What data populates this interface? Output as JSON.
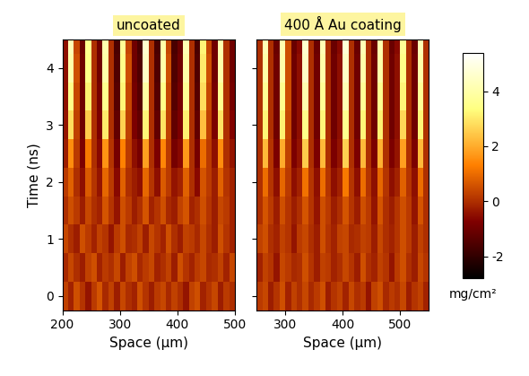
{
  "chart_data": [
    {
      "type": "heatmap",
      "title": "uncoated",
      "xlabel": "Space (µm)",
      "ylabel": "Time (ns)",
      "xlim": [
        200,
        500
      ],
      "xticks": [
        200,
        300,
        400,
        500
      ],
      "ylim": [
        -0.25,
        4.5
      ],
      "yticks": [
        0,
        1,
        2,
        3,
        4
      ],
      "x": [
        205,
        215,
        225,
        235,
        245,
        255,
        265,
        275,
        285,
        295,
        305,
        315,
        325,
        335,
        345,
        355,
        365,
        375,
        385,
        395,
        405,
        415,
        425,
        435,
        445,
        455,
        465,
        475,
        485,
        495
      ],
      "y": [
        0,
        0.5,
        1,
        1.5,
        2,
        2.5,
        3,
        3.5,
        4,
        4.5
      ],
      "z": [
        [
          0.3,
          -0.2,
          0.5,
          0.1,
          -0.4,
          0.2,
          0.6,
          -0.1,
          0.3,
          -0.3,
          0.4,
          0.0,
          -0.2,
          0.5,
          0.1,
          -0.3,
          0.2,
          0.4,
          -0.1,
          0.3,
          0.0,
          -0.4,
          0.3,
          0.5,
          -0.2,
          0.1,
          0.4,
          -0.3,
          0.2,
          0.0
        ],
        [
          -0.1,
          0.4,
          0.0,
          -0.3,
          0.3,
          0.5,
          -0.2,
          0.2,
          0.0,
          0.4,
          -0.3,
          0.3,
          0.5,
          -0.1,
          0.2,
          0.4,
          -0.2,
          0.0,
          0.3,
          -0.3,
          0.5,
          0.1,
          -0.2,
          0.2,
          0.4,
          -0.1,
          0.0,
          0.3,
          -0.2,
          0.4
        ],
        [
          0.4,
          0.0,
          -0.3,
          0.5,
          0.2,
          -0.2,
          0.3,
          0.1,
          -0.4,
          0.2,
          0.5,
          -0.1,
          0.0,
          0.3,
          -0.3,
          0.4,
          0.1,
          -0.2,
          0.5,
          0.0,
          -0.3,
          0.3,
          0.2,
          -0.1,
          0.4,
          0.0,
          -0.3,
          0.5,
          0.1,
          -0.2
        ],
        [
          0.0,
          0.5,
          0.2,
          -0.3,
          0.4,
          0.0,
          -0.2,
          0.6,
          0.1,
          -0.4,
          0.5,
          0.2,
          -0.3,
          0.0,
          0.6,
          -0.2,
          0.1,
          0.5,
          -0.1,
          -0.3,
          0.3,
          0.6,
          -0.2,
          0.0,
          0.5,
          0.1,
          -0.3,
          0.4,
          0.2,
          -0.2
        ],
        [
          0.2,
          0.8,
          0.0,
          -0.5,
          0.7,
          0.1,
          -0.4,
          0.9,
          0.2,
          -0.6,
          0.8,
          0.0,
          -0.3,
          -0.5,
          0.9,
          0.1,
          -0.5,
          0.7,
          0.2,
          -0.4,
          -0.2,
          0.8,
          0.0,
          -0.6,
          0.6,
          0.2,
          -0.3,
          0.8,
          0.1,
          -0.2
        ],
        [
          -0.3,
          1.5,
          0.2,
          -0.8,
          1.2,
          0.0,
          -0.6,
          1.6,
          0.1,
          -0.9,
          1.3,
          0.2,
          -0.5,
          -0.9,
          1.8,
          0.0,
          -0.8,
          1.4,
          0.2,
          -0.9,
          -0.6,
          1.7,
          0.0,
          -0.9,
          1.0,
          0.2,
          -0.5,
          1.5,
          0.0,
          -0.4
        ],
        [
          -0.4,
          2.8,
          0.3,
          -1.0,
          2.5,
          0.0,
          -0.8,
          3.0,
          0.0,
          -1.2,
          2.6,
          0.3,
          -0.8,
          -1.2,
          3.2,
          0.0,
          -1.2,
          2.9,
          0.3,
          -1.2,
          -0.8,
          3.1,
          0.0,
          -1.2,
          2.3,
          0.3,
          -0.8,
          2.9,
          0.0,
          -0.7
        ],
        [
          -0.5,
          3.5,
          0.4,
          -1.0,
          3.1,
          0.0,
          -0.9,
          3.6,
          0.0,
          -1.4,
          3.2,
          0.4,
          -0.9,
          -1.4,
          3.9,
          0.0,
          -1.4,
          3.5,
          0.4,
          -1.4,
          -0.9,
          3.7,
          0.0,
          -1.4,
          2.8,
          0.4,
          -0.9,
          3.6,
          0.0,
          -0.9
        ],
        [
          -0.5,
          4.0,
          0.5,
          -1.0,
          3.5,
          0.0,
          -1.0,
          4.0,
          0.0,
          -1.5,
          3.5,
          0.5,
          -1.0,
          -1.5,
          4.5,
          0.0,
          -1.5,
          4.0,
          0.5,
          -1.5,
          -1.0,
          4.0,
          0.0,
          -1.5,
          3.0,
          0.5,
          -1.0,
          4.0,
          0.0,
          -1.0
        ],
        [
          -0.5,
          4.2,
          0.4,
          -1.1,
          3.6,
          0.0,
          -1.0,
          4.1,
          0.0,
          -1.6,
          3.7,
          0.4,
          -1.0,
          -1.6,
          4.6,
          0.0,
          -1.6,
          4.0,
          0.4,
          -1.6,
          -1.1,
          4.2,
          0.0,
          -1.6,
          3.2,
          0.4,
          -1.0,
          4.1,
          0.0,
          -1.0
        ]
      ]
    },
    {
      "type": "heatmap",
      "title": "400 Å Au coating",
      "xlabel": "Space (µm)",
      "xlim": [
        250,
        550
      ],
      "xticks": [
        300,
        400,
        500
      ],
      "ylim": [
        -0.25,
        4.5
      ],
      "yticks": [
        0,
        1,
        2,
        3,
        4
      ],
      "tick_labels": "x",
      "x": [
        255,
        265,
        275,
        285,
        295,
        305,
        315,
        325,
        335,
        345,
        355,
        365,
        375,
        385,
        395,
        405,
        415,
        425,
        435,
        445,
        455,
        465,
        475,
        485,
        495,
        505,
        515,
        525,
        535,
        545
      ],
      "y": [
        0,
        0.5,
        1,
        1.5,
        2,
        2.5,
        3,
        3.5,
        4,
        4.5
      ],
      "z": [
        [
          0.2,
          0.4,
          -0.3,
          0.1,
          0.5,
          -0.2,
          0.3,
          0.0,
          0.4,
          -0.1,
          0.2,
          0.5,
          -0.3,
          0.1,
          0.3,
          -0.2,
          0.4,
          0.0,
          0.2,
          -0.4,
          0.3,
          0.5,
          -0.1,
          0.2,
          0.0,
          0.4,
          -0.3,
          0.1,
          0.3,
          -0.2
        ],
        [
          -0.2,
          0.3,
          0.1,
          -0.4,
          0.4,
          0.2,
          -0.1,
          0.0,
          0.5,
          0.1,
          -0.3,
          0.3,
          0.2,
          -0.2,
          0.0,
          0.4,
          0.1,
          -0.3,
          0.5,
          0.0,
          -0.2,
          0.3,
          0.1,
          -0.4,
          0.2,
          0.5,
          0.0,
          -0.3,
          0.4,
          0.1
        ],
        [
          0.3,
          0.5,
          0.0,
          -0.2,
          0.3,
          0.1,
          -0.4,
          0.2,
          0.4,
          0.0,
          -0.3,
          0.5,
          0.1,
          -0.2,
          0.3,
          0.4,
          -0.1,
          0.0,
          0.3,
          0.2,
          -0.3,
          0.4,
          0.0,
          -0.2,
          0.1,
          0.5,
          0.2,
          -0.3,
          0.3,
          0.0
        ],
        [
          0.0,
          0.6,
          0.2,
          -0.3,
          0.5,
          0.1,
          -0.3,
          0.0,
          0.6,
          0.1,
          -0.4,
          0.5,
          0.2,
          -0.3,
          0.0,
          0.6,
          0.1,
          -0.3,
          0.5,
          0.2,
          -0.4,
          0.6,
          0.0,
          -0.3,
          0.1,
          0.5,
          0.2,
          -0.4,
          0.6,
          0.0
        ],
        [
          0.0,
          1.0,
          0.1,
          -0.5,
          0.9,
          0.2,
          -0.5,
          -0.2,
          1.1,
          0.1,
          -0.5,
          1.0,
          0.1,
          -0.5,
          -0.2,
          1.2,
          0.1,
          -0.5,
          1.0,
          0.1,
          -0.5,
          0.9,
          0.1,
          -0.5,
          -0.2,
          0.8,
          0.1,
          -0.5,
          1.0,
          0.0
        ],
        [
          0.0,
          2.2,
          0.1,
          -0.8,
          2.0,
          0.3,
          -0.8,
          -0.4,
          2.5,
          0.0,
          -0.8,
          2.2,
          0.0,
          -0.8,
          -0.4,
          2.6,
          0.0,
          -0.8,
          2.2,
          0.0,
          -0.8,
          2.1,
          0.0,
          -0.8,
          -0.4,
          1.8,
          0.0,
          -0.8,
          2.2,
          0.0
        ],
        [
          0.0,
          3.2,
          0.0,
          -1.0,
          3.1,
          0.4,
          -1.0,
          -0.5,
          3.5,
          0.0,
          -1.0,
          3.2,
          0.0,
          -1.0,
          -0.5,
          3.6,
          0.0,
          -1.0,
          3.2,
          0.0,
          -1.0,
          3.1,
          0.0,
          -1.0,
          -0.5,
          2.7,
          0.0,
          -1.0,
          3.2,
          0.0
        ],
        [
          0.0,
          3.7,
          0.0,
          -1.0,
          3.6,
          0.5,
          -1.0,
          -0.5,
          4.1,
          0.0,
          -1.0,
          3.7,
          0.0,
          -1.0,
          -0.5,
          4.2,
          0.0,
          -1.0,
          3.7,
          0.0,
          -1.0,
          3.6,
          0.0,
          -1.0,
          -0.5,
          3.2,
          0.0,
          -1.0,
          3.7,
          0.0
        ],
        [
          0.0,
          4.0,
          0.0,
          -1.0,
          4.0,
          0.5,
          -1.0,
          -0.5,
          4.5,
          0.0,
          -1.0,
          4.0,
          0.0,
          -1.0,
          -0.5,
          4.5,
          0.0,
          -1.0,
          4.0,
          0.0,
          -1.0,
          4.0,
          0.0,
          -1.0,
          -0.5,
          3.5,
          0.0,
          -1.0,
          4.0,
          0.0
        ],
        [
          0.0,
          4.2,
          0.0,
          -1.1,
          4.1,
          0.5,
          -1.1,
          -0.6,
          4.6,
          0.0,
          -1.1,
          4.2,
          0.0,
          -1.1,
          -0.6,
          4.7,
          0.0,
          -1.1,
          4.2,
          0.0,
          -1.1,
          4.1,
          0.0,
          -1.1,
          -0.6,
          3.7,
          0.0,
          -1.1,
          4.2,
          0.0
        ]
      ],
      "colorbar": {
        "range": [
          -2.8,
          5.4
        ],
        "ticks": [
          -2,
          0,
          2,
          4
        ],
        "label": "mg/cm²"
      }
    }
  ]
}
